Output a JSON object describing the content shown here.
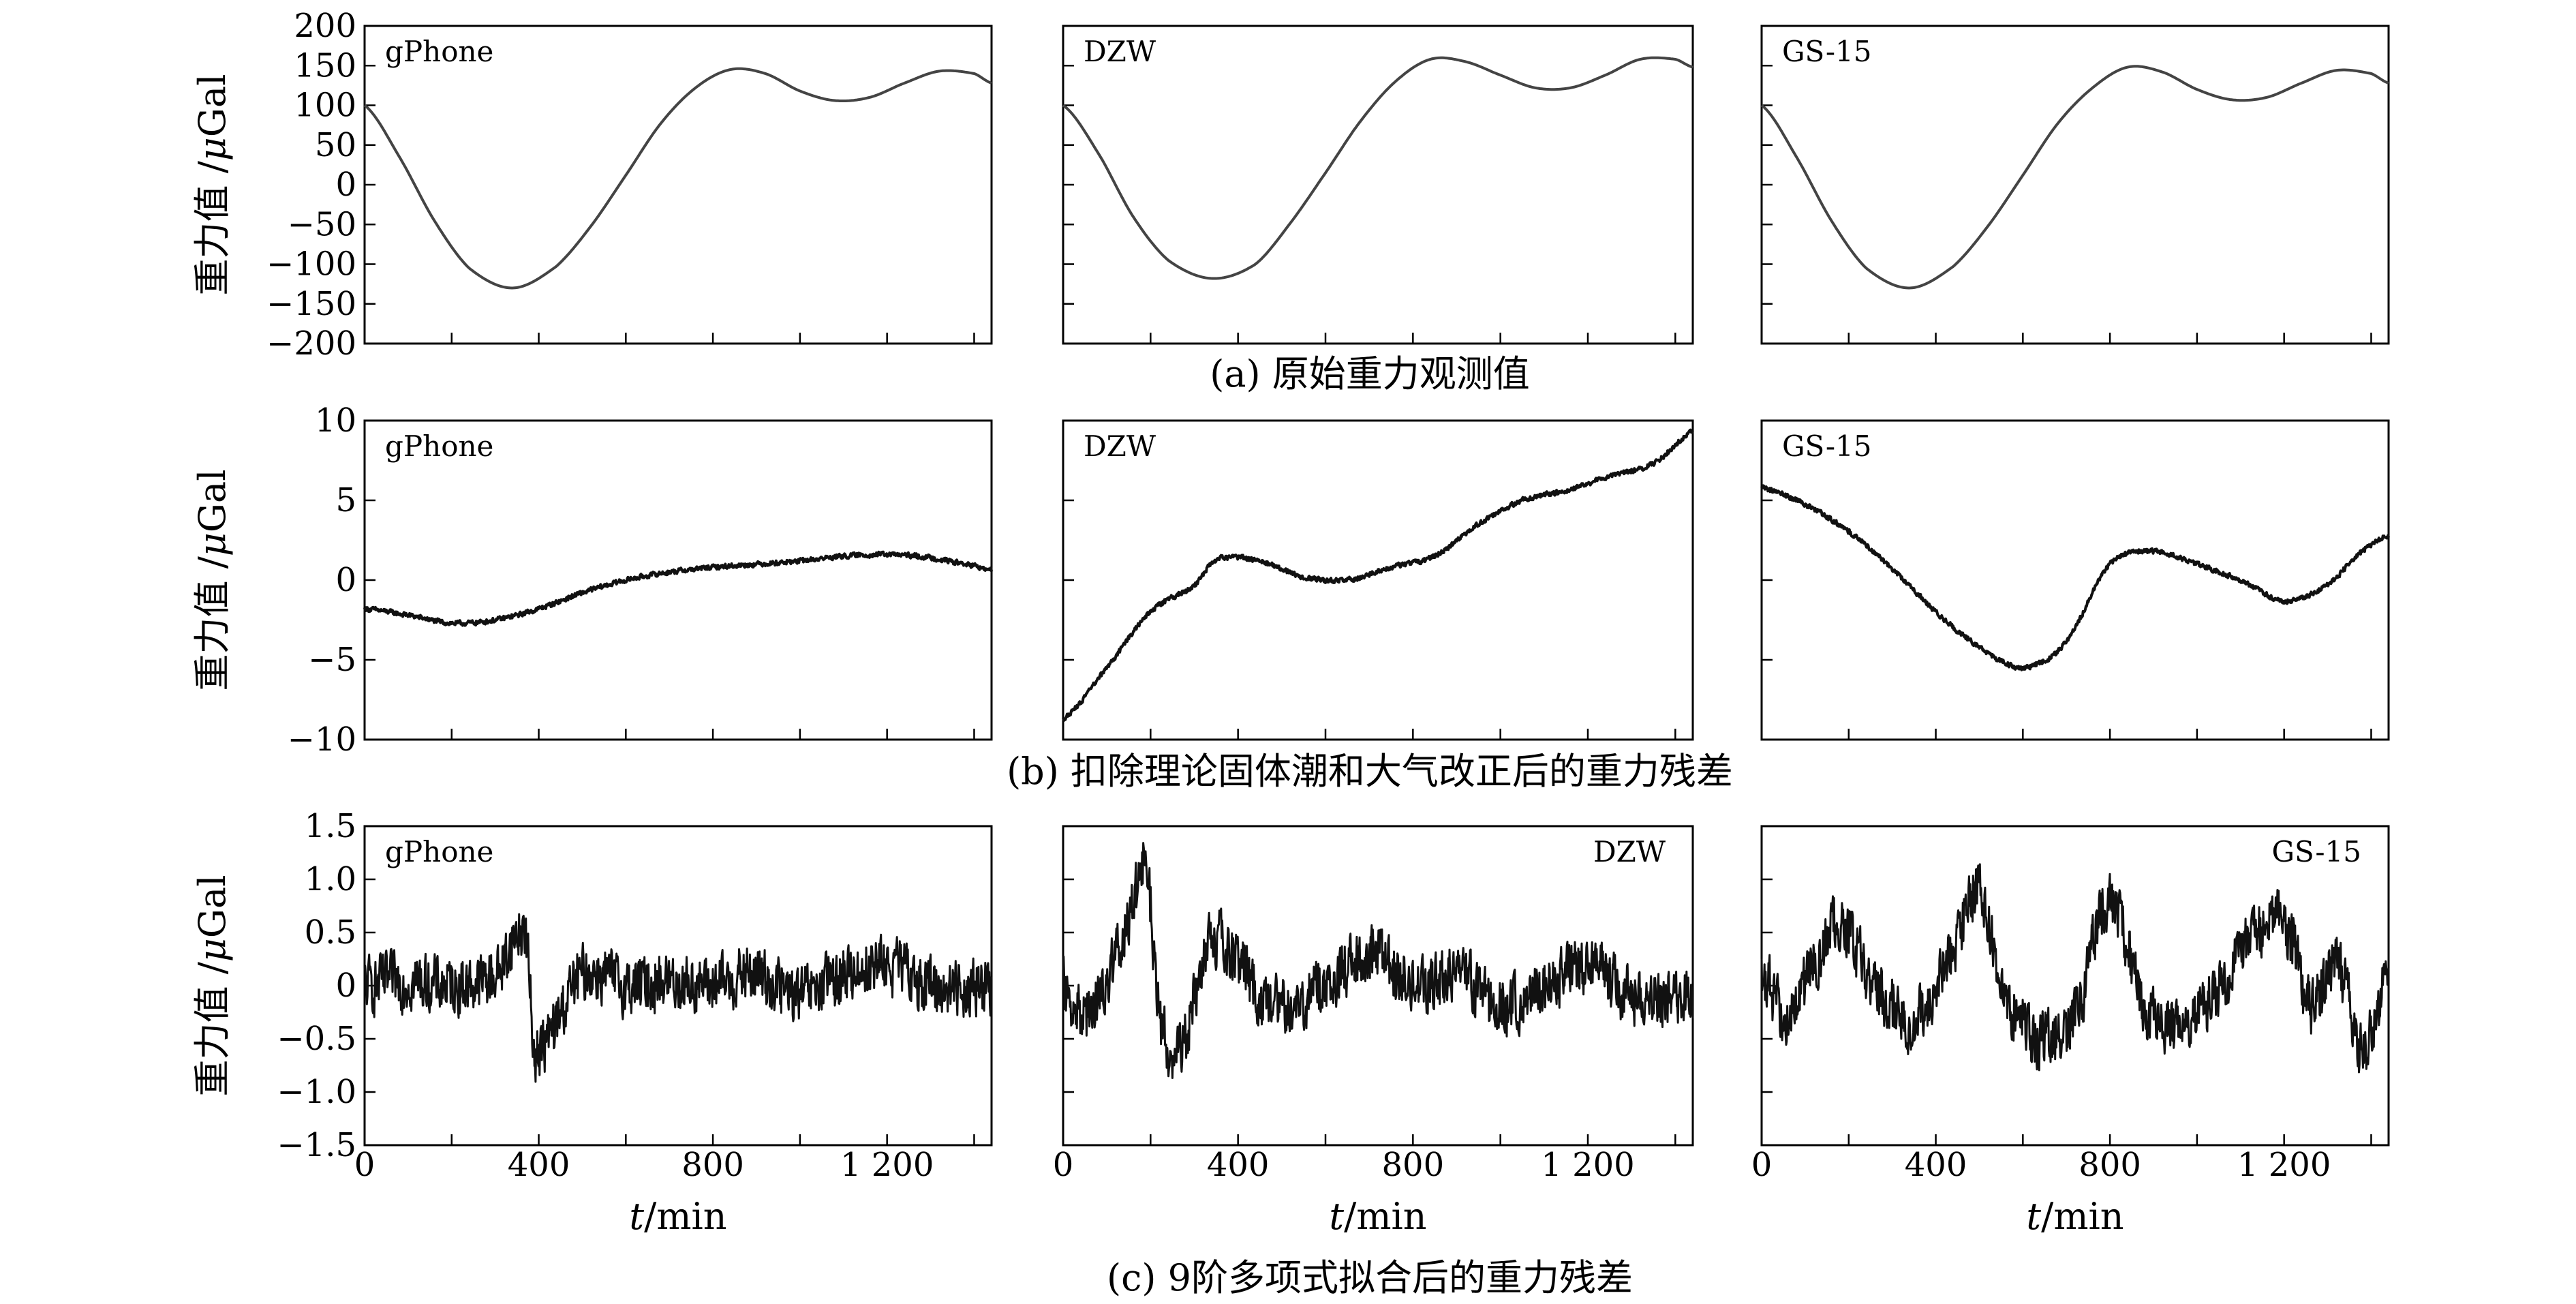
{
  "figure": {
    "x_axis_label_italic": "t",
    "x_axis_label_rest": "/min",
    "y_axis_label_prefix": "重力值 /",
    "y_axis_label_mu": "μ",
    "y_axis_label_unit": "Gal",
    "caption_a": "(a) 原始重力观测值",
    "caption_b": "(b) 扣除理论固体潮和大气改正后的重力残差",
    "caption_c": "(c) 9阶多项式拟合后的重力残差"
  },
  "chart_data": [
    {
      "type": "line",
      "row": "a",
      "caption": "(a) 原始重力观测值",
      "ylabel": "重力值 /μGal",
      "ylim": [
        -200,
        200
      ],
      "yticks": [
        -200,
        -150,
        -100,
        -50,
        0,
        50,
        100,
        150,
        200
      ],
      "yticklabels": [
        "−200",
        "−150",
        "−100",
        "−50",
        "0",
        "50",
        "100",
        "150",
        "200"
      ],
      "xlim": [
        0,
        1440
      ],
      "panels": [
        {
          "name": "gPhone",
          "x": [
            0,
            80,
            160,
            240,
            340,
            440,
            520,
            600,
            680,
            760,
            840,
            920,
            1000,
            1080,
            1160,
            1240,
            1320,
            1400,
            1440
          ],
          "y": [
            100,
            35,
            -45,
            -105,
            -130,
            -103,
            -52,
            12,
            77,
            122,
            145,
            140,
            118,
            106,
            110,
            128,
            143,
            140,
            128
          ]
        },
        {
          "name": "DZW",
          "x": [
            0,
            80,
            160,
            240,
            340,
            440,
            520,
            600,
            680,
            760,
            840,
            920,
            1000,
            1080,
            1160,
            1240,
            1320,
            1400,
            1440
          ],
          "y": [
            100,
            40,
            -40,
            -95,
            -118,
            -100,
            -48,
            15,
            80,
            130,
            158,
            155,
            138,
            122,
            122,
            138,
            158,
            158,
            148
          ]
        },
        {
          "name": "GS-15",
          "x": [
            0,
            80,
            160,
            240,
            340,
            440,
            520,
            600,
            680,
            760,
            840,
            920,
            1000,
            1080,
            1160,
            1240,
            1320,
            1400,
            1440
          ],
          "y": [
            100,
            35,
            -45,
            -105,
            -130,
            -103,
            -52,
            12,
            77,
            122,
            148,
            142,
            120,
            107,
            110,
            128,
            144,
            140,
            128
          ]
        }
      ]
    },
    {
      "type": "line",
      "row": "b",
      "caption": "(b) 扣除理论固体潮和大气改正后的重力残差",
      "ylabel": "重力值 /μGal",
      "ylim": [
        -10,
        10
      ],
      "yticks": [
        -10,
        -5,
        0,
        5,
        10
      ],
      "yticklabels": [
        "−10",
        "−5",
        "0",
        "5",
        "10"
      ],
      "xlim": [
        0,
        1440
      ],
      "noise": 0.15,
      "panels": [
        {
          "name": "gPhone",
          "x": [
            0,
            100,
            200,
            300,
            400,
            500,
            600,
            700,
            800,
            900,
            1000,
            1100,
            1200,
            1300,
            1400,
            1440
          ],
          "y": [
            -1.8,
            -2.2,
            -2.7,
            -2.5,
            -1.8,
            -0.8,
            0.0,
            0.5,
            0.8,
            1.0,
            1.2,
            1.5,
            1.6,
            1.4,
            0.9,
            0.6
          ]
        },
        {
          "name": "DZW",
          "x": [
            0,
            100,
            200,
            300,
            350,
            450,
            550,
            650,
            750,
            850,
            950,
            1050,
            1150,
            1250,
            1350,
            1440
          ],
          "y": [
            -8.7,
            -5.5,
            -2.0,
            -0.4,
            1.3,
            1.2,
            0.2,
            0.0,
            0.8,
            1.5,
            3.5,
            5.0,
            5.6,
            6.5,
            7.3,
            9.3
          ]
        },
        {
          "name": "GS-15",
          "x": [
            0,
            80,
            160,
            240,
            320,
            400,
            480,
            560,
            620,
            700,
            800,
            900,
            1000,
            1100,
            1200,
            1300,
            1380,
            1440
          ],
          "y": [
            5.8,
            5.0,
            3.8,
            2.2,
            0.2,
            -2.0,
            -3.8,
            -5.2,
            -5.4,
            -3.8,
            1.0,
            1.8,
            1.0,
            0.0,
            -1.3,
            -0.3,
            1.8,
            2.8
          ]
        }
      ]
    },
    {
      "type": "line",
      "row": "c",
      "caption": "(c) 9阶多项式拟合后的重力残差",
      "ylabel": "重力值 /μGal",
      "ylim": [
        -1.5,
        1.5
      ],
      "yticks": [
        -1.5,
        -1.0,
        -0.5,
        0,
        0.5,
        1.0,
        1.5
      ],
      "yticklabels": [
        "−1.5",
        "−1.0",
        "−0.5",
        "0",
        "0.5",
        "1.0",
        "1.5"
      ],
      "xlim": [
        0,
        1440
      ],
      "xticks": [
        0,
        400,
        800,
        1200
      ],
      "xticklabels": [
        "0",
        "400",
        "800",
        "1 200"
      ],
      "xlabel": "t/min",
      "noise": 0.22,
      "panels": [
        {
          "name": "gPhone",
          "x": [
            0,
            100,
            200,
            300,
            370,
            390,
            500,
            600,
            700,
            800,
            900,
            1000,
            1100,
            1200,
            1300,
            1440
          ],
          "y": [
            0.0,
            0.05,
            0.0,
            0.1,
            0.5,
            -0.6,
            0.1,
            0.0,
            0.05,
            0.0,
            0.1,
            -0.1,
            0.1,
            0.2,
            0.0,
            0.0
          ]
        },
        {
          "name": "DZW",
          "x": [
            0,
            50,
            100,
            150,
            190,
            220,
            270,
            330,
            400,
            450,
            520,
            600,
            700,
            800,
            900,
            1000,
            1100,
            1200,
            1300,
            1440
          ],
          "y": [
            0.0,
            -0.3,
            0.1,
            0.6,
            1.1,
            -0.3,
            -0.6,
            0.4,
            0.2,
            -0.1,
            -0.2,
            0.0,
            0.3,
            0.0,
            0.1,
            -0.2,
            0.0,
            0.2,
            -0.1,
            -0.1
          ]
        },
        {
          "name": "GS-15",
          "x": [
            0,
            60,
            120,
            180,
            260,
            350,
            450,
            500,
            560,
            640,
            720,
            800,
            880,
            960,
            1040,
            1120,
            1200,
            1260,
            1320,
            1380,
            1440
          ],
          "y": [
            0.1,
            -0.3,
            0.2,
            0.6,
            0.0,
            -0.3,
            0.4,
            0.9,
            -0.1,
            -0.5,
            -0.3,
            0.8,
            -0.2,
            -0.4,
            -0.1,
            0.4,
            0.6,
            -0.2,
            0.2,
            -0.6,
            0.1
          ]
        }
      ]
    }
  ]
}
